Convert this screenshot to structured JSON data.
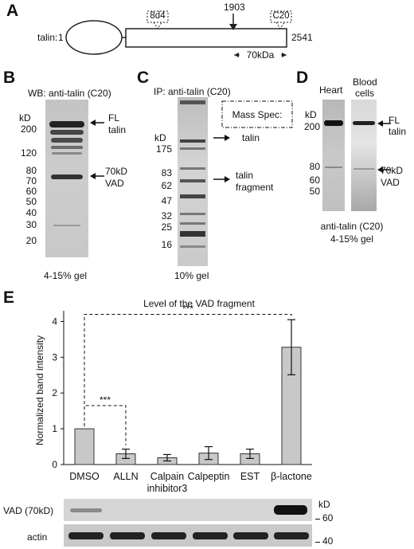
{
  "panel_a": {
    "letter": "A",
    "protein": "talin:",
    "start": "1",
    "end": "2541",
    "site": "1903",
    "epitope1": "8d4",
    "epitope2": "C20",
    "fragment_size": "70kDa"
  },
  "panel_b": {
    "letter": "B",
    "title": "WB: anti-talin (C20)",
    "unit": "kD",
    "markers": [
      "200",
      "120",
      "80",
      "70",
      "60",
      "50",
      "40",
      "30",
      "20"
    ],
    "label_fl_1": "FL",
    "label_fl_2": "talin",
    "label_vad_1": "70kD",
    "label_vad_2": "VAD",
    "caption": "4-15% gel"
  },
  "panel_c": {
    "letter": "C",
    "title": "IP: anti-talin (C20)",
    "unit": "kD",
    "markers": [
      "175",
      "83",
      "62",
      "47",
      "32",
      "25",
      "16"
    ],
    "box_label": "Mass Spec:",
    "label_talin": "talin",
    "label_frag_1": "talin",
    "label_frag_2": "fragment",
    "caption": "10% gel"
  },
  "panel_d": {
    "letter": "D",
    "lane1": "Heart",
    "lane2_1": "Blood",
    "lane2_2": "cells",
    "unit": "kD",
    "markers": [
      "200",
      "80",
      "60",
      "50"
    ],
    "label_fl_1": "FL",
    "label_fl_2": "talin",
    "label_vad_1": "70kD",
    "label_vad_2": "VAD",
    "caption_1": "anti-talin (C20)",
    "caption_2": "4-15% gel"
  },
  "panel_e": {
    "letter": "E",
    "blot_row1": "VAD (70kD)",
    "blot_row2": "actin",
    "blot_unit": "kD",
    "blot_marker1": "60",
    "blot_marker2": "40"
  },
  "chart_data": {
    "type": "bar",
    "title": "Level of the VAD fragment",
    "xlabel": "",
    "ylabel": "Normalized band intensity",
    "ylim": [
      0,
      4.3
    ],
    "yticks": [
      "0",
      "1",
      "2",
      "3",
      "4"
    ],
    "categories": [
      "DMSO",
      "ALLN",
      "Calpain inhibitor3",
      "Calpeptin",
      "EST",
      "β-lactone"
    ],
    "category_lines": [
      [
        "DMSO"
      ],
      [
        "ALLN"
      ],
      [
        "Calpain",
        "inhibitor3"
      ],
      [
        "Calpeptin"
      ],
      [
        "EST"
      ],
      [
        "β-lactone"
      ]
    ],
    "values": [
      1.0,
      0.3,
      0.19,
      0.32,
      0.3,
      3.28
    ],
    "errors": [
      0.0,
      0.13,
      0.09,
      0.18,
      0.13,
      0.77
    ],
    "significance": [
      {
        "from": "DMSO",
        "to": "ALLN",
        "label": "***"
      },
      {
        "from": "DMSO",
        "to": "β-lactone",
        "label": "***"
      }
    ],
    "bar_color": "#c8c8c8"
  }
}
